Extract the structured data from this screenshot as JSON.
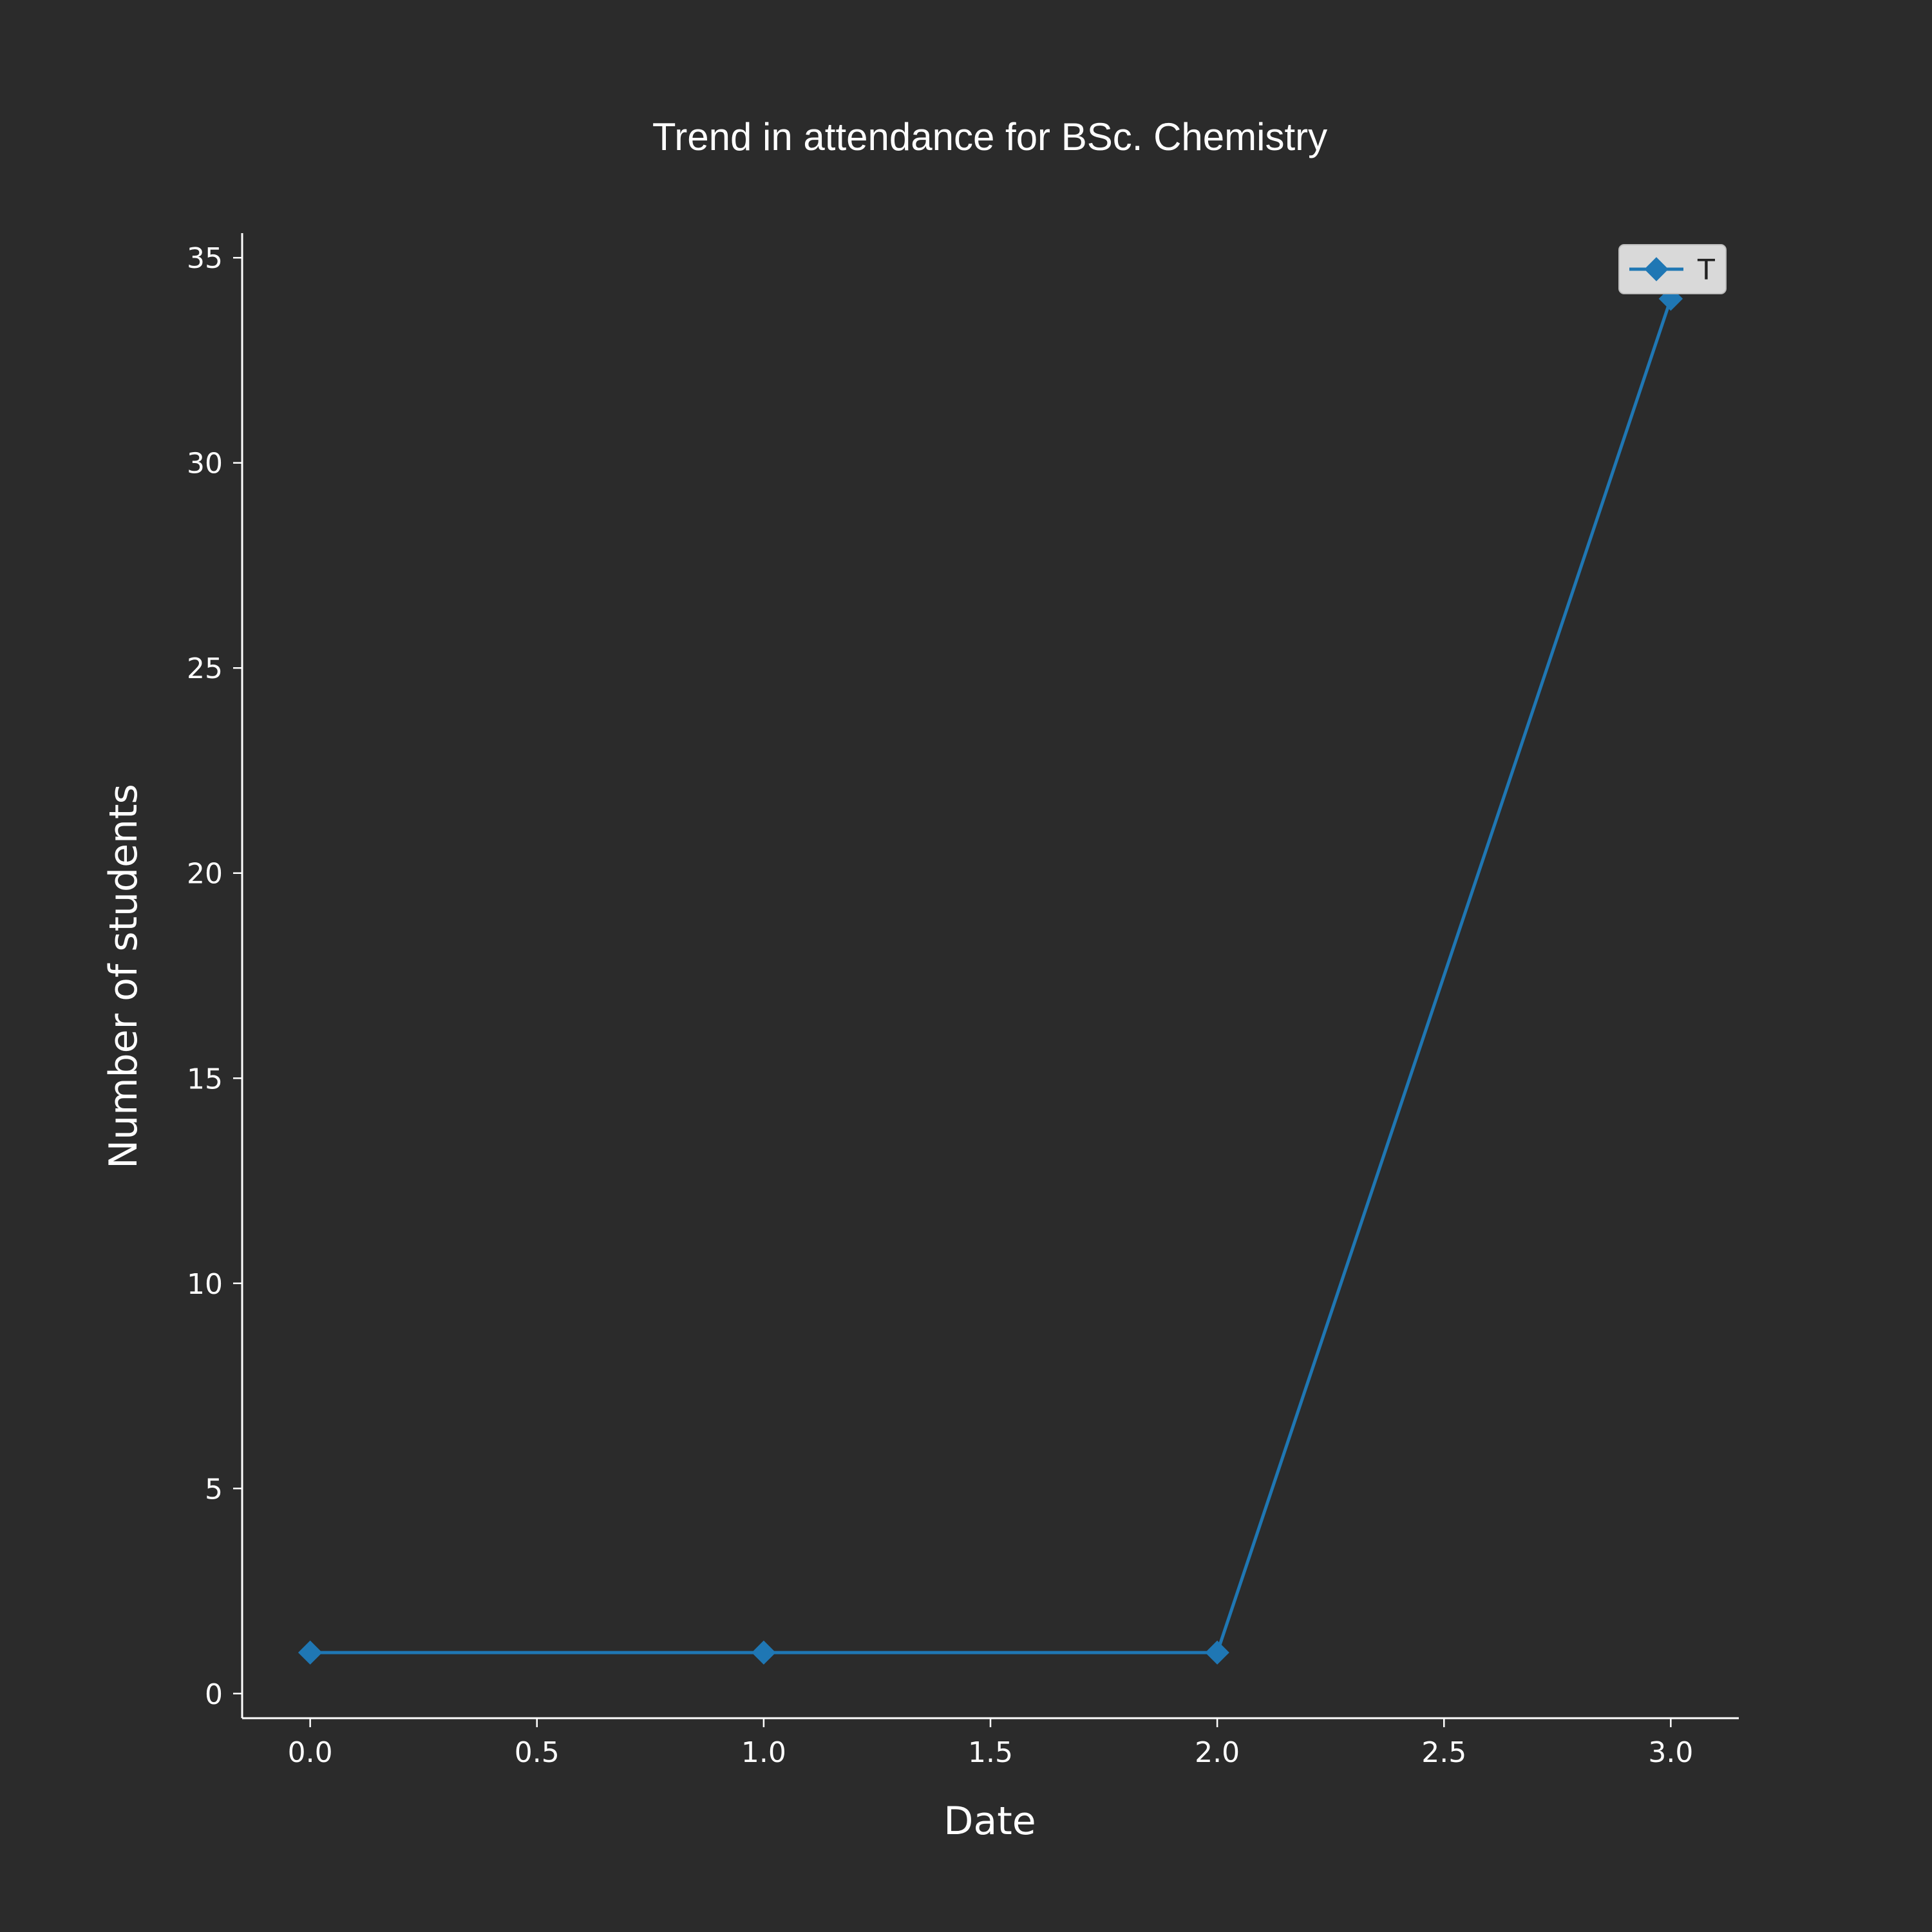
{
  "chart_data": {
    "type": "line",
    "title": "Trend in attendance for BSc. Chemistry",
    "xlabel": "Date",
    "ylabel": "Number of students",
    "x": [
      0,
      1,
      2,
      3
    ],
    "series": [
      {
        "name": "T",
        "values": [
          1,
          1,
          1,
          34
        ],
        "color": "#1f77b4",
        "marker": "diamond"
      }
    ],
    "xlim": [
      -0.15,
      3.15
    ],
    "ylim": [
      -0.6,
      35.6
    ],
    "xticks": [
      0.0,
      0.5,
      1.0,
      1.5,
      2.0,
      2.5,
      3.0
    ],
    "xtick_labels": [
      "0.0",
      "0.5",
      "1.0",
      "1.5",
      "2.0",
      "2.5",
      "3.0"
    ],
    "yticks": [
      0,
      5,
      10,
      15,
      20,
      25,
      30,
      35
    ],
    "ytick_labels": [
      "0",
      "5",
      "10",
      "15",
      "20",
      "25",
      "30",
      "35"
    ],
    "grid": false,
    "legend_position": "top-right",
    "background_color": "#2b2b2b",
    "axis_color": "#ffffff",
    "text_color": "#ffffff"
  }
}
